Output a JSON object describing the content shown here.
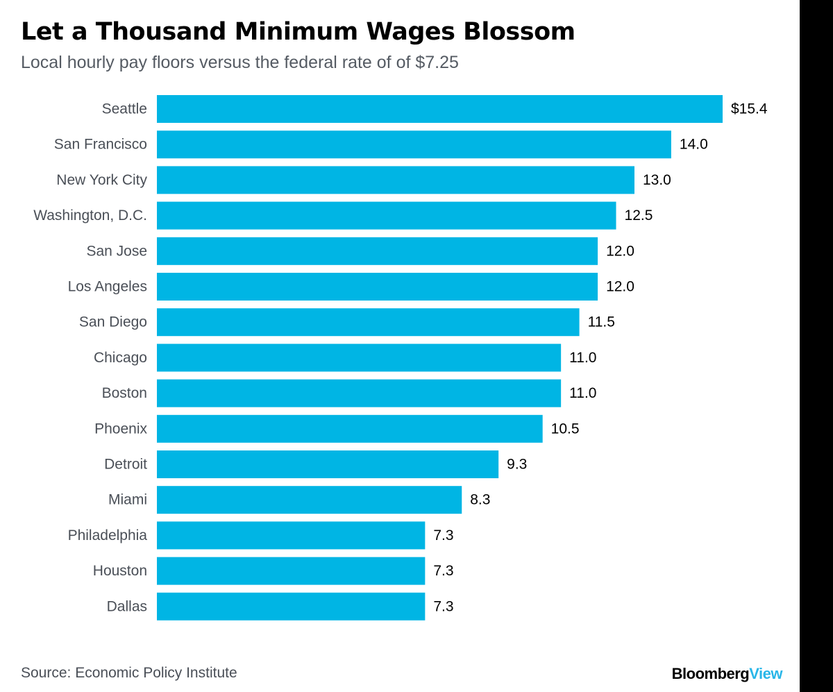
{
  "title": "Let a Thousand Minimum Wages Blossom",
  "subtitle": "Local hourly pay floors versus the federal rate of of $7.25",
  "source": "Source: Economic Policy Institute",
  "brand": {
    "main": "Bloomberg",
    "accent": "View"
  },
  "colors": {
    "bar": "#00b5e4",
    "brand_accent": "#29b6e8",
    "background": "#ffffff"
  },
  "chart_data": {
    "type": "bar",
    "orientation": "horizontal",
    "categories": [
      "Seattle",
      "San Francisco",
      "New York City",
      "Washington, D.C.",
      "San Jose",
      "Los Angeles",
      "San Diego",
      "Chicago",
      "Boston",
      "Phoenix",
      "Detroit",
      "Miami",
      "Philadelphia",
      "Houston",
      "Dallas"
    ],
    "values": [
      15.4,
      14.0,
      13.0,
      12.5,
      12.0,
      12.0,
      11.5,
      11.0,
      11.0,
      10.5,
      9.3,
      8.3,
      7.3,
      7.3,
      7.3
    ],
    "value_labels": [
      "$15.4",
      "14.0",
      "13.0",
      "12.5",
      "12.0",
      "12.0",
      "11.5",
      "11.0",
      "11.0",
      "10.5",
      "9.3",
      "8.3",
      "7.3",
      "7.3",
      "7.3"
    ],
    "title": "Let a Thousand Minimum Wages Blossom",
    "xlabel": "",
    "ylabel": "",
    "xlim": [
      0,
      15.4
    ],
    "grid": false,
    "legend": "none"
  }
}
